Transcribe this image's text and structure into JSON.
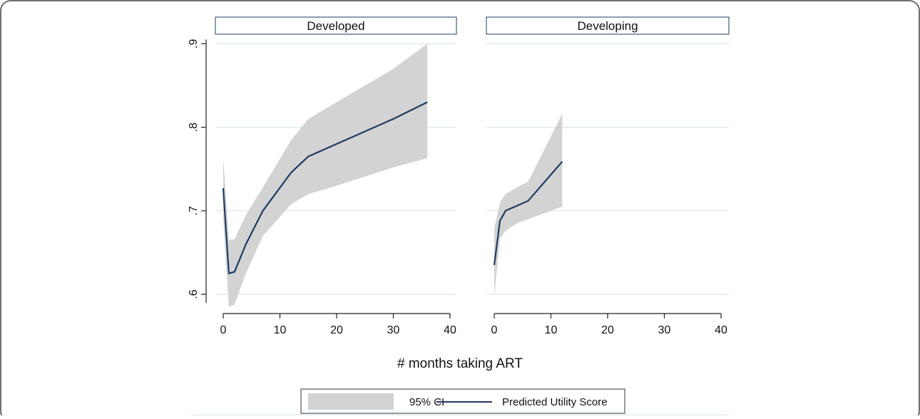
{
  "chart_data": {
    "type": "line",
    "xlabel": "# months taking ART",
    "ylabel": "",
    "xlim": [
      0,
      40
    ],
    "ylim": [
      0.6,
      0.9
    ],
    "x_ticks": [
      0,
      10,
      20,
      30,
      40
    ],
    "y_ticks": [
      0.6,
      0.7,
      0.8,
      0.9
    ],
    "y_tick_labels": [
      ".6",
      ".7",
      ".8",
      ".9"
    ],
    "grid": true,
    "legend_placement": "bottom",
    "legend": {
      "ci_label": "95% CI",
      "line_label": "Predicted Utility Score"
    },
    "colors": {
      "line": "#1f3b63",
      "band": "#d3d3d3",
      "grid": "#dbe8ef"
    },
    "panels": [
      {
        "title": "Developed",
        "series": [
          {
            "name": "Predicted Utility Score",
            "x": [
              0,
              1,
              2,
              4,
              7,
              12,
              15,
              20,
              30,
              36
            ],
            "y": [
              0.727,
              0.625,
              0.627,
              0.66,
              0.7,
              0.746,
              0.765,
              0.78,
              0.81,
              0.83
            ]
          }
        ],
        "ci": {
          "name": "95% CI",
          "x": [
            0,
            1,
            2,
            4,
            7,
            12,
            15,
            20,
            30,
            36
          ],
          "lower": [
            0.69,
            0.585,
            0.588,
            0.625,
            0.67,
            0.708,
            0.72,
            0.73,
            0.752,
            0.763
          ],
          "upper": [
            0.763,
            0.665,
            0.666,
            0.695,
            0.728,
            0.785,
            0.81,
            0.83,
            0.87,
            0.9
          ]
        }
      },
      {
        "title": "Developing",
        "series": [
          {
            "name": "Predicted Utility Score",
            "x": [
              0,
              1,
              2,
              4,
              6,
              12
            ],
            "y": [
              0.635,
              0.688,
              0.7,
              0.706,
              0.712,
              0.759
            ]
          }
        ],
        "ci": {
          "name": "95% CI",
          "x": [
            0,
            1,
            2,
            4,
            6,
            12
          ],
          "lower": [
            0.597,
            0.666,
            0.676,
            0.685,
            0.69,
            0.705
          ],
          "upper": [
            0.678,
            0.71,
            0.72,
            0.728,
            0.735,
            0.816
          ]
        }
      }
    ]
  }
}
